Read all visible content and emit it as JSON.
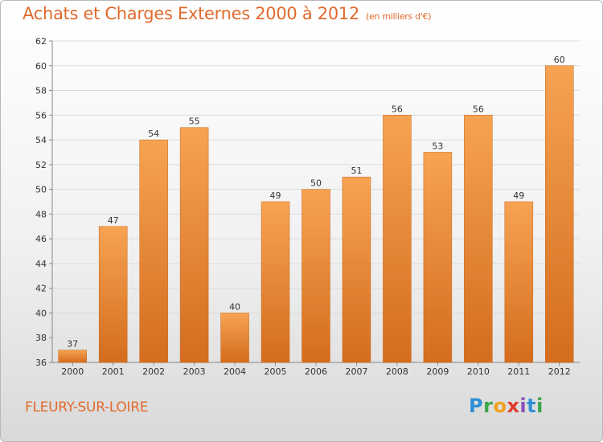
{
  "title": "Achats et Charges Externes 2000 à 2012",
  "subtitle": "(en milliers d'€)",
  "commune": "FLEURY-SUR-LOIRE",
  "logo": {
    "letters": [
      "P",
      "r",
      "o",
      "x",
      "i",
      "t",
      "i"
    ],
    "colors": [
      "#2f8fd8",
      "#3aa64a",
      "#f0a020",
      "#e03c2c",
      "#8a4fb8",
      "#2f8fd8",
      "#3aa64a"
    ]
  },
  "colors": {
    "bar": "#f0903a",
    "bar_dark": "#d86f1c",
    "text": "#e06a2c",
    "grid": "#dcdcdc"
  },
  "chart_data": {
    "type": "bar",
    "title": "Achats et Charges Externes 2000 à 2012",
    "subtitle": "(en milliers d'€)",
    "categories": [
      "2000",
      "2001",
      "2002",
      "2003",
      "2004",
      "2005",
      "2006",
      "2007",
      "2008",
      "2009",
      "2010",
      "2011",
      "2012"
    ],
    "values": [
      37,
      47,
      54,
      55,
      40,
      49,
      50,
      51,
      56,
      53,
      56,
      49,
      60
    ],
    "ylim": [
      36,
      62
    ],
    "yticks": [
      36,
      38,
      40,
      42,
      44,
      46,
      48,
      50,
      52,
      54,
      56,
      58,
      60,
      62
    ],
    "grid": true,
    "data_labels": true
  }
}
